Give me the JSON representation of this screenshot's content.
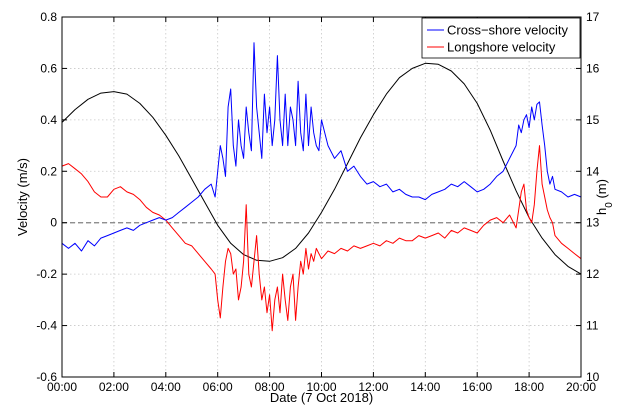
{
  "chart_data": {
    "type": "line",
    "xlabel": "Date (7 Oct 2018)",
    "ylabel": "Velocity (m/s)",
    "y2label": "h_0 (m)",
    "xlim": [
      0,
      20
    ],
    "ylim": [
      -0.6,
      0.8
    ],
    "y2lim": [
      10,
      17
    ],
    "x_ticks": [
      "00:00",
      "02:00",
      "04:00",
      "06:00",
      "08:00",
      "10:00",
      "12:00",
      "14:00",
      "16:00",
      "18:00",
      "20:00"
    ],
    "y_ticks": [
      "-0.6",
      "-0.4",
      "-0.2",
      "0",
      "0.2",
      "0.4",
      "0.6",
      "0.8"
    ],
    "y2_ticks": [
      "10",
      "11",
      "12",
      "13",
      "14",
      "15",
      "16",
      "17"
    ],
    "grid": true,
    "legend_position": "top-right",
    "zero_line": 0,
    "series": [
      {
        "name": "Cross−shore velocity",
        "axis": "left",
        "color": "#0000ff",
        "x": [
          0,
          0.25,
          0.5,
          0.75,
          1,
          1.25,
          1.5,
          1.75,
          2,
          2.25,
          2.5,
          2.75,
          3,
          3.25,
          3.5,
          3.75,
          4,
          4.25,
          4.5,
          4.75,
          5,
          5.25,
          5.5,
          5.75,
          5.9,
          6,
          6.1,
          6.2,
          6.3,
          6.4,
          6.5,
          6.6,
          6.7,
          6.8,
          6.9,
          7,
          7.1,
          7.2,
          7.3,
          7.4,
          7.5,
          7.6,
          7.7,
          7.8,
          7.9,
          8,
          8.1,
          8.2,
          8.3,
          8.4,
          8.5,
          8.6,
          8.7,
          8.8,
          8.9,
          9,
          9.1,
          9.2,
          9.3,
          9.4,
          9.5,
          9.6,
          9.7,
          9.8,
          9.9,
          10,
          10.25,
          10.5,
          10.75,
          11,
          11.25,
          11.5,
          11.75,
          12,
          12.25,
          12.5,
          12.75,
          13,
          13.25,
          13.5,
          13.75,
          14,
          14.25,
          14.5,
          14.75,
          15,
          15.25,
          15.5,
          15.75,
          16,
          16.25,
          16.5,
          16.75,
          17,
          17.25,
          17.5,
          17.6,
          17.7,
          17.8,
          17.9,
          18,
          18.1,
          18.2,
          18.3,
          18.4,
          18.5,
          18.6,
          18.7,
          18.8,
          18.9,
          19,
          19.25,
          19.5,
          19.75,
          20
        ],
        "values": [
          -0.08,
          -0.1,
          -0.08,
          -0.11,
          -0.07,
          -0.09,
          -0.06,
          -0.05,
          -0.04,
          -0.03,
          -0.02,
          -0.03,
          -0.01,
          0,
          0.01,
          0.02,
          0.01,
          0.02,
          0.04,
          0.06,
          0.08,
          0.1,
          0.13,
          0.15,
          0.1,
          0.2,
          0.3,
          0.25,
          0.18,
          0.45,
          0.52,
          0.3,
          0.22,
          0.4,
          0.3,
          0.25,
          0.45,
          0.35,
          0.28,
          0.7,
          0.45,
          0.35,
          0.25,
          0.5,
          0.35,
          0.45,
          0.3,
          0.4,
          0.65,
          0.4,
          0.3,
          0.5,
          0.3,
          0.45,
          0.4,
          0.3,
          0.55,
          0.35,
          0.28,
          0.5,
          0.3,
          0.45,
          0.35,
          0.3,
          0.28,
          0.4,
          0.3,
          0.25,
          0.28,
          0.2,
          0.22,
          0.18,
          0.15,
          0.16,
          0.14,
          0.15,
          0.12,
          0.13,
          0.11,
          0.1,
          0.1,
          0.09,
          0.11,
          0.12,
          0.13,
          0.15,
          0.14,
          0.16,
          0.14,
          0.12,
          0.13,
          0.15,
          0.18,
          0.2,
          0.25,
          0.3,
          0.38,
          0.35,
          0.4,
          0.42,
          0.37,
          0.45,
          0.4,
          0.46,
          0.47,
          0.38,
          0.3,
          0.2,
          0.15,
          0.18,
          0.13,
          0.12,
          0.1,
          0.11,
          0.1
        ]
      },
      {
        "name": "Longshore velocity",
        "axis": "left",
        "color": "#ff0000",
        "x": [
          0,
          0.25,
          0.5,
          0.75,
          1,
          1.25,
          1.5,
          1.75,
          2,
          2.25,
          2.5,
          2.75,
          3,
          3.25,
          3.5,
          3.75,
          4,
          4.25,
          4.5,
          4.75,
          5,
          5.25,
          5.5,
          5.75,
          5.9,
          6,
          6.1,
          6.2,
          6.3,
          6.4,
          6.5,
          6.6,
          6.7,
          6.8,
          6.9,
          7,
          7.1,
          7.2,
          7.3,
          7.4,
          7.5,
          7.6,
          7.7,
          7.8,
          7.9,
          8,
          8.1,
          8.2,
          8.3,
          8.4,
          8.5,
          8.6,
          8.7,
          8.8,
          8.9,
          9,
          9.1,
          9.2,
          9.3,
          9.4,
          9.5,
          9.6,
          9.7,
          9.8,
          9.9,
          10,
          10.25,
          10.5,
          10.75,
          11,
          11.25,
          11.5,
          11.75,
          12,
          12.25,
          12.5,
          12.75,
          13,
          13.25,
          13.5,
          13.75,
          14,
          14.25,
          14.5,
          14.75,
          15,
          15.25,
          15.5,
          15.75,
          16,
          16.25,
          16.5,
          16.75,
          17,
          17.25,
          17.5,
          17.6,
          17.7,
          17.8,
          17.9,
          18,
          18.1,
          18.2,
          18.3,
          18.4,
          18.5,
          18.6,
          18.7,
          18.8,
          18.9,
          19,
          19.25,
          19.5,
          19.75,
          20
        ],
        "values": [
          0.22,
          0.23,
          0.21,
          0.19,
          0.16,
          0.12,
          0.1,
          0.1,
          0.13,
          0.14,
          0.12,
          0.11,
          0.09,
          0.06,
          0.04,
          0.03,
          0.01,
          -0.02,
          -0.05,
          -0.08,
          -0.09,
          -0.12,
          -0.15,
          -0.18,
          -0.2,
          -0.3,
          -0.37,
          -0.25,
          -0.15,
          -0.1,
          -0.12,
          -0.2,
          -0.18,
          -0.3,
          -0.25,
          -0.15,
          0.07,
          -0.2,
          -0.25,
          -0.15,
          -0.05,
          -0.2,
          -0.3,
          -0.25,
          -0.35,
          -0.28,
          -0.42,
          -0.3,
          -0.25,
          -0.35,
          -0.2,
          -0.3,
          -0.38,
          -0.25,
          -0.2,
          -0.38,
          -0.25,
          -0.15,
          -0.2,
          -0.1,
          -0.18,
          -0.12,
          -0.15,
          -0.1,
          -0.12,
          -0.14,
          -0.11,
          -0.12,
          -0.1,
          -0.11,
          -0.09,
          -0.1,
          -0.09,
          -0.08,
          -0.09,
          -0.07,
          -0.08,
          -0.06,
          -0.07,
          -0.07,
          -0.05,
          -0.06,
          -0.05,
          -0.04,
          -0.06,
          -0.03,
          -0.04,
          -0.02,
          -0.03,
          -0.04,
          -0.01,
          0.01,
          0.02,
          0.0,
          0.03,
          -0.02,
          0.05,
          0.12,
          0.15,
          0.05,
          0.02,
          0.0,
          0.07,
          0.2,
          0.3,
          0.15,
          0.1,
          0.05,
          0.02,
          0.0,
          -0.05,
          -0.08,
          -0.1,
          -0.12,
          -0.14
        ]
      },
      {
        "name": "",
        "axis": "right",
        "color": "#000000",
        "x": [
          0,
          0.5,
          1,
          1.5,
          2,
          2.5,
          3,
          3.5,
          4,
          4.5,
          5,
          5.5,
          6,
          6.5,
          7,
          7.5,
          8,
          8.5,
          9,
          9.5,
          10,
          10.5,
          11,
          11.5,
          12,
          12.5,
          13,
          13.5,
          14,
          14.5,
          15,
          15.5,
          16,
          16.5,
          17,
          17.5,
          18,
          18.5,
          19,
          19.5,
          20
        ],
        "values": [
          14.95,
          15.2,
          15.4,
          15.52,
          15.55,
          15.5,
          15.32,
          15.05,
          14.7,
          14.3,
          13.85,
          13.4,
          12.95,
          12.6,
          12.38,
          12.27,
          12.25,
          12.32,
          12.5,
          12.8,
          13.2,
          13.65,
          14.15,
          14.65,
          15.1,
          15.5,
          15.82,
          16.0,
          16.1,
          16.08,
          15.95,
          15.7,
          15.32,
          14.8,
          14.2,
          13.62,
          13.1,
          12.7,
          12.38,
          12.15,
          12.0
        ]
      }
    ]
  }
}
